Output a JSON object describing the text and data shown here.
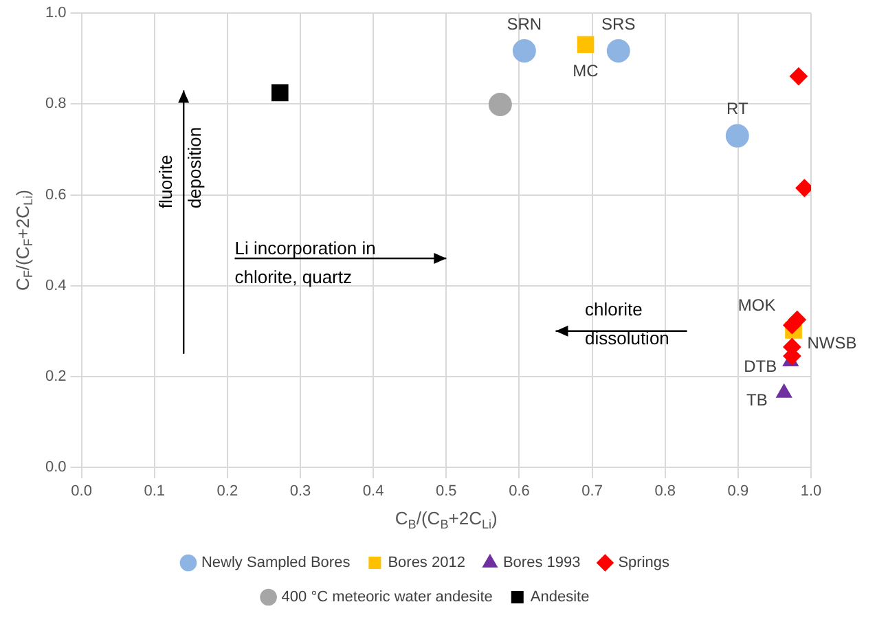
{
  "chart_data": {
    "type": "scatter",
    "xlabel": "C$_{B}$/(C$_{B}$+2C$_{Li}$)",
    "ylabel": "C$_{F}$/(C$_{F}$+2C$_{Li}$)",
    "xlim": [
      0,
      1
    ],
    "ylim": [
      0,
      1
    ],
    "xticks": [
      {
        "value": 0,
        "label": "0.0"
      },
      {
        "value": 0.1,
        "label": "0.1"
      },
      {
        "value": 0.2,
        "label": "0.2"
      },
      {
        "value": 0.3,
        "label": "0.3"
      },
      {
        "value": 0.4,
        "label": "0.4"
      },
      {
        "value": 0.5,
        "label": "0.5"
      },
      {
        "value": 0.6,
        "label": "0.6"
      },
      {
        "value": 0.7,
        "label": "0.7"
      },
      {
        "value": 0.8,
        "label": "0.8"
      },
      {
        "value": 0.9,
        "label": "0.9"
      },
      {
        "value": 1,
        "label": "1.0"
      }
    ],
    "yticks": [
      {
        "value": 0,
        "label": "0.0"
      },
      {
        "value": 0.2,
        "label": "0.2"
      },
      {
        "value": 0.4,
        "label": "0.4"
      },
      {
        "value": 0.6,
        "label": "0.6"
      },
      {
        "value": 0.8,
        "label": "0.8"
      },
      {
        "value": 1,
        "label": "1.0"
      }
    ],
    "grid": true,
    "legend": "bottom",
    "series": [
      {
        "name": "Newly Sampled Bores",
        "color": "#8eb4e3",
        "marker": "circle",
        "x": [
          0.607,
          0.736,
          0.899
        ],
        "values": [
          0.917,
          0.917,
          0.73
        ]
      },
      {
        "name": "Bores 2012",
        "color": "#ffc000",
        "marker": "square",
        "x": [
          0.691,
          0.976
        ],
        "values": [
          0.931,
          0.302
        ]
      },
      {
        "name": "Bores 1993",
        "color": "#7030a0",
        "marker": "triangle",
        "x": [
          0.972,
          0.963
        ],
        "values": [
          0.233,
          0.164
        ]
      },
      {
        "name": "Springs",
        "color": "#ff0000",
        "marker": "diamond",
        "x": [
          0.983,
          0.991,
          0.981,
          0.974,
          0.974,
          0.974
        ],
        "values": [
          0.861,
          0.615,
          0.325,
          0.313,
          0.265,
          0.245
        ]
      },
      {
        "name": "400 °C meteoric water andesite",
        "color": "#a6a6a6",
        "marker": "circle",
        "x": [
          0.574
        ],
        "values": [
          0.799
        ]
      },
      {
        "name": "Andesite",
        "color": "#000000",
        "marker": "square",
        "x": [
          0.272
        ],
        "values": [
          0.825
        ]
      }
    ],
    "annotations": [
      {
        "text": "SRN",
        "x": 0.607,
        "y": 0.917
      },
      {
        "text": "SRS",
        "x": 0.736,
        "y": 0.917
      },
      {
        "text": "MC",
        "x": 0.691,
        "y": 0.931
      },
      {
        "text": "RT",
        "x": 0.899,
        "y": 0.73
      },
      {
        "text": "MOK",
        "x": 0.974,
        "y": 0.313
      },
      {
        "text": "NWSB",
        "x": 0.976,
        "y": 0.302
      },
      {
        "text": "DTB",
        "x": 0.972,
        "y": 0.233
      },
      {
        "text": "TB",
        "x": 0.963,
        "y": 0.164
      },
      "fluorite deposition",
      "Li incorporation in chlorite, quartz",
      "chlorite dissolution"
    ]
  }
}
